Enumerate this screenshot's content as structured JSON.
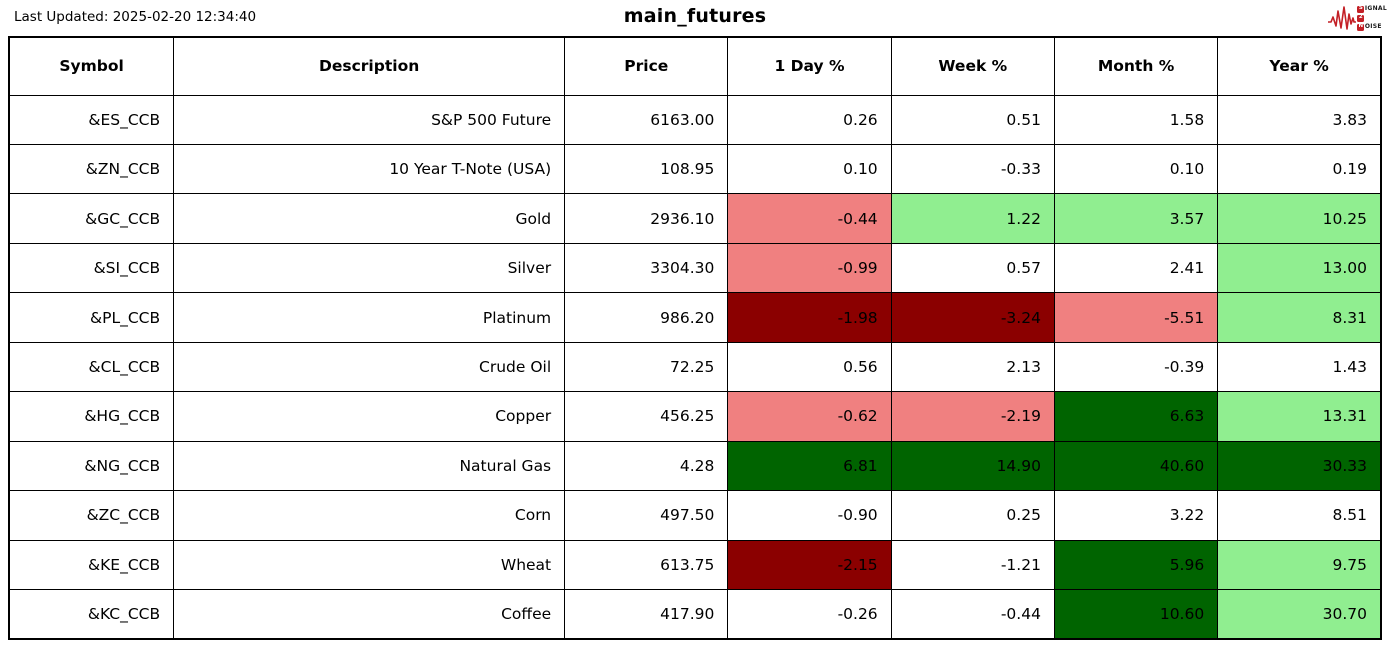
{
  "page": {
    "last_updated": "Last Updated: 2025-02-20 12:34:40",
    "title": "main_futures"
  },
  "logo": {
    "line1_badge": "S",
    "line1_rest": "IGNAL",
    "line2_badge": "2",
    "line3_badge": "N",
    "line3_rest": "OISE",
    "accent_color": "#c32026"
  },
  "colors": {
    "neg_mild": "#f08080",
    "neg_strong": "#8b0000",
    "pos_mild": "#90ee90",
    "pos_strong": "#006400",
    "border": "#000000",
    "background": "#ffffff",
    "text": "#000000"
  },
  "chart_data": {
    "type": "table",
    "title": "main_futures",
    "columns": [
      "Symbol",
      "Description",
      "Price",
      "1 Day %",
      "Week %",
      "Month %",
      "Year %"
    ],
    "rows": [
      {
        "symbol": "&ES_CCB",
        "description": "S&P 500 Future",
        "price": "6163.00",
        "pcts": [
          "0.26",
          "0.51",
          "1.58",
          "3.83"
        ],
        "pct_colors": [
          null,
          null,
          null,
          null
        ]
      },
      {
        "symbol": "&ZN_CCB",
        "description": "10 Year T-Note (USA)",
        "price": "108.95",
        "pcts": [
          "0.10",
          "-0.33",
          "0.10",
          "0.19"
        ],
        "pct_colors": [
          null,
          null,
          null,
          null
        ]
      },
      {
        "symbol": "&GC_CCB",
        "description": "Gold",
        "price": "2936.10",
        "pcts": [
          "-0.44",
          "1.22",
          "3.57",
          "10.25"
        ],
        "pct_colors": [
          "neg_mild",
          "pos_mild",
          "pos_mild",
          "pos_mild"
        ]
      },
      {
        "symbol": "&SI_CCB",
        "description": "Silver",
        "price": "3304.30",
        "pcts": [
          "-0.99",
          "0.57",
          "2.41",
          "13.00"
        ],
        "pct_colors": [
          "neg_mild",
          null,
          null,
          "pos_mild"
        ]
      },
      {
        "symbol": "&PL_CCB",
        "description": "Platinum",
        "price": "986.20",
        "pcts": [
          "-1.98",
          "-3.24",
          "-5.51",
          "8.31"
        ],
        "pct_colors": [
          "neg_strong",
          "neg_strong",
          "neg_mild",
          "pos_mild"
        ]
      },
      {
        "symbol": "&CL_CCB",
        "description": "Crude Oil",
        "price": "72.25",
        "pcts": [
          "0.56",
          "2.13",
          "-0.39",
          "1.43"
        ],
        "pct_colors": [
          null,
          null,
          null,
          null
        ]
      },
      {
        "symbol": "&HG_CCB",
        "description": "Copper",
        "price": "456.25",
        "pcts": [
          "-0.62",
          "-2.19",
          "6.63",
          "13.31"
        ],
        "pct_colors": [
          "neg_mild",
          "neg_mild",
          "pos_strong",
          "pos_mild"
        ]
      },
      {
        "symbol": "&NG_CCB",
        "description": "Natural Gas",
        "price": "4.28",
        "pcts": [
          "6.81",
          "14.90",
          "40.60",
          "30.33"
        ],
        "pct_colors": [
          "pos_strong",
          "pos_strong",
          "pos_strong",
          "pos_strong"
        ]
      },
      {
        "symbol": "&ZC_CCB",
        "description": "Corn",
        "price": "497.50",
        "pcts": [
          "-0.90",
          "0.25",
          "3.22",
          "8.51"
        ],
        "pct_colors": [
          null,
          null,
          null,
          null
        ]
      },
      {
        "symbol": "&KE_CCB",
        "description": "Wheat",
        "price": "613.75",
        "pcts": [
          "-2.15",
          "-1.21",
          "5.96",
          "9.75"
        ],
        "pct_colors": [
          "neg_strong",
          null,
          "pos_strong",
          "pos_mild"
        ]
      },
      {
        "symbol": "&KC_CCB",
        "description": "Coffee",
        "price": "417.90",
        "pcts": [
          "-0.26",
          "-0.44",
          "10.60",
          "30.70"
        ],
        "pct_colors": [
          null,
          null,
          "pos_strong",
          "pos_mild"
        ]
      }
    ]
  }
}
